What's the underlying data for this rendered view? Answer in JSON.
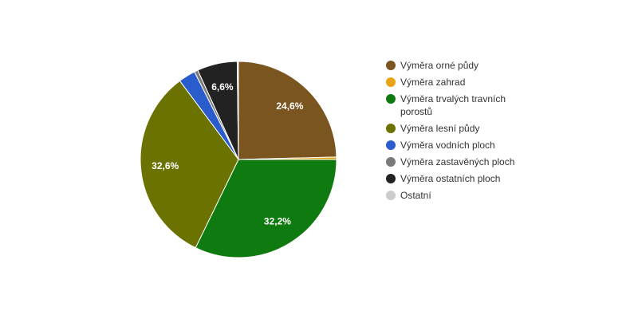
{
  "chart_data": {
    "type": "pie",
    "categories": [
      "Výměra orné půdy",
      "Výměra zahrad",
      "Výměra trvalých travních porostů",
      "Výměra lesní půdy",
      "Výměra vodních ploch",
      "Výměra zastavěných ploch",
      "Výměra ostatních ploch",
      "Ostatní"
    ],
    "values": [
      24.6,
      0.4,
      32.2,
      32.6,
      2.8,
      0.6,
      6.6,
      0.2
    ],
    "value_labels": [
      "24,6%",
      null,
      "32,2%",
      "32,6%",
      null,
      null,
      "6,6%",
      null
    ],
    "colors": [
      "#7b5520",
      "#e8a317",
      "#0f7a0f",
      "#6b7200",
      "#2a5ccc",
      "#7a7a7a",
      "#222222",
      "#cccccc"
    ],
    "legend": "right"
  }
}
